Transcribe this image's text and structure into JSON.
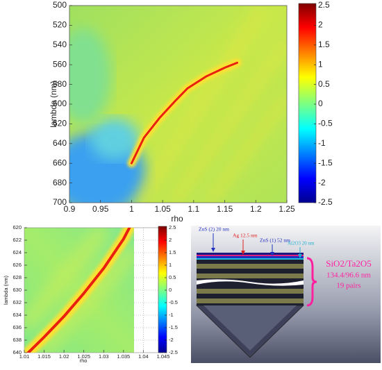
{
  "chart_data": [
    {
      "type": "heatmap",
      "xlabel": "rho",
      "ylabel": "lambda (nm)",
      "xlim": [
        0.9,
        1.25
      ],
      "xticks": [
        0.9,
        0.95,
        1,
        1.05,
        1.1,
        1.15,
        1.2,
        1.25
      ],
      "ylim": [
        700,
        500
      ],
      "yticks": [
        500,
        520,
        540,
        560,
        580,
        600,
        620,
        640,
        660,
        680,
        700
      ],
      "clim": [
        -2.5,
        2.5
      ],
      "cticks": [
        2.5,
        2,
        1.5,
        1,
        0.5,
        0,
        -0.5,
        -1,
        -1.5,
        -2,
        -2.5
      ],
      "ridge": {
        "x": [
          1.0,
          1.02,
          1.045,
          1.07,
          1.09,
          1.12,
          1.15,
          1.17
        ],
        "y": [
          660,
          634,
          614,
          597,
          584,
          572,
          563,
          558
        ]
      }
    },
    {
      "type": "heatmap",
      "xlabel": "rho",
      "ylabel": "lambda (nm)",
      "xlim": [
        1.01,
        1.045
      ],
      "xticks": [
        1.01,
        1.015,
        1.02,
        1.025,
        1.03,
        1.035,
        1.04,
        1.045
      ],
      "ylim": [
        640,
        620
      ],
      "yticks": [
        620,
        622,
        624,
        626,
        628,
        630,
        632,
        634,
        636,
        638,
        640
      ],
      "clim": [
        -2.5,
        2.5
      ],
      "cticks": [
        2.5,
        2,
        1.5,
        1,
        0.5,
        0,
        -0.5,
        -1,
        -1.5,
        -2,
        -2.5
      ],
      "ridge": {
        "x": [
          1.011,
          1.015,
          1.02,
          1.025,
          1.03,
          1.035,
          1.0365
        ],
        "y": [
          640,
          637.5,
          634.2,
          630.5,
          626.5,
          621.8,
          620
        ]
      }
    }
  ],
  "diagram": {
    "layers": [
      "ZnS (2) 20 nm",
      "Ag 12.5 nm",
      "ZnS (1) 52 nm",
      "Al2O3 20 nm"
    ],
    "stack": {
      "material": "SiO2/Ta2O5",
      "thickness": "134.4/96.6 nm",
      "pairs": "19 pairs"
    }
  }
}
